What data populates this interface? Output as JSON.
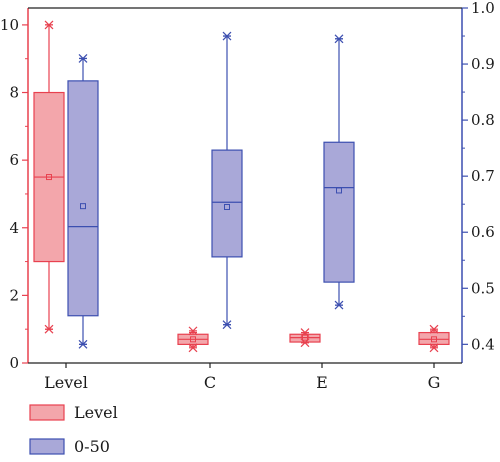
{
  "chart_data": {
    "type": "box",
    "categories": [
      "Level",
      "C",
      "E",
      "G"
    ],
    "y_left": {
      "range": [
        0,
        10.5
      ],
      "ticks": [
        "0",
        "2",
        "4",
        "6",
        "8",
        "10"
      ],
      "color": "#e8414f"
    },
    "y_right": {
      "range": [
        0.3667,
        1.0
      ],
      "ticks": [
        "0.4",
        "0.5",
        "0.6",
        "0.7",
        "0.8",
        "0.9",
        "1.0"
      ],
      "color": "#3c4fb0"
    },
    "legend_placement": "bottom-left",
    "series": [
      {
        "name": "Level",
        "axis": "left",
        "fill": "#f3a6ab",
        "stroke": "#e8414f",
        "boxes": [
          {
            "category": "Level",
            "whisker_low": 1.0,
            "q1": 3.0,
            "median": 5.5,
            "q3": 8.0,
            "whisker_high": 10.0,
            "mean": 5.5,
            "min_marker": 1.0,
            "max_marker": 10.0
          },
          {
            "category": "C",
            "whisker_low": 0.5,
            "q1": 0.55,
            "median": 0.7,
            "q3": 0.85,
            "whisker_high": 0.9,
            "mean": 0.7,
            "min_marker": 0.45,
            "max_marker": 0.95
          },
          {
            "category": "E",
            "whisker_low": 0.6,
            "q1": 0.62,
            "median": 0.75,
            "q3": 0.85,
            "whisker_high": 0.9,
            "mean": 0.75,
            "min_marker": 0.6,
            "max_marker": 0.9
          },
          {
            "category": "G",
            "whisker_low": 0.5,
            "q1": 0.55,
            "median": 0.7,
            "q3": 0.9,
            "whisker_high": 0.95,
            "mean": 0.7,
            "min_marker": 0.45,
            "max_marker": 1.0
          }
        ]
      },
      {
        "name": "0-50",
        "axis": "right",
        "fill": "#a9a8d8",
        "stroke": "#3c4fb0",
        "boxes": [
          {
            "category": "Level",
            "whisker_low": 0.4,
            "q1": 0.451,
            "median": 0.61,
            "q3": 0.87,
            "whisker_high": 0.91,
            "mean": 0.6465,
            "min_marker": 0.4,
            "max_marker": 0.91
          },
          {
            "category": "C",
            "whisker_low": 0.435,
            "q1": 0.556,
            "median": 0.6535,
            "q3": 0.7465,
            "whisker_high": 0.95,
            "mean": 0.645,
            "min_marker": 0.435,
            "max_marker": 0.95
          },
          {
            "category": "E",
            "whisker_low": 0.47,
            "q1": 0.511,
            "median": 0.6795,
            "q3": 0.7605,
            "whisker_high": 0.945,
            "mean": 0.6745,
            "min_marker": 0.47,
            "max_marker": 0.945
          }
        ]
      }
    ]
  },
  "legend": [
    {
      "label": "Level",
      "fill": "#f3a6ab",
      "stroke": "#e8414f"
    },
    {
      "label": "0-50",
      "fill": "#a9a8d8",
      "stroke": "#3c4fb0"
    }
  ]
}
